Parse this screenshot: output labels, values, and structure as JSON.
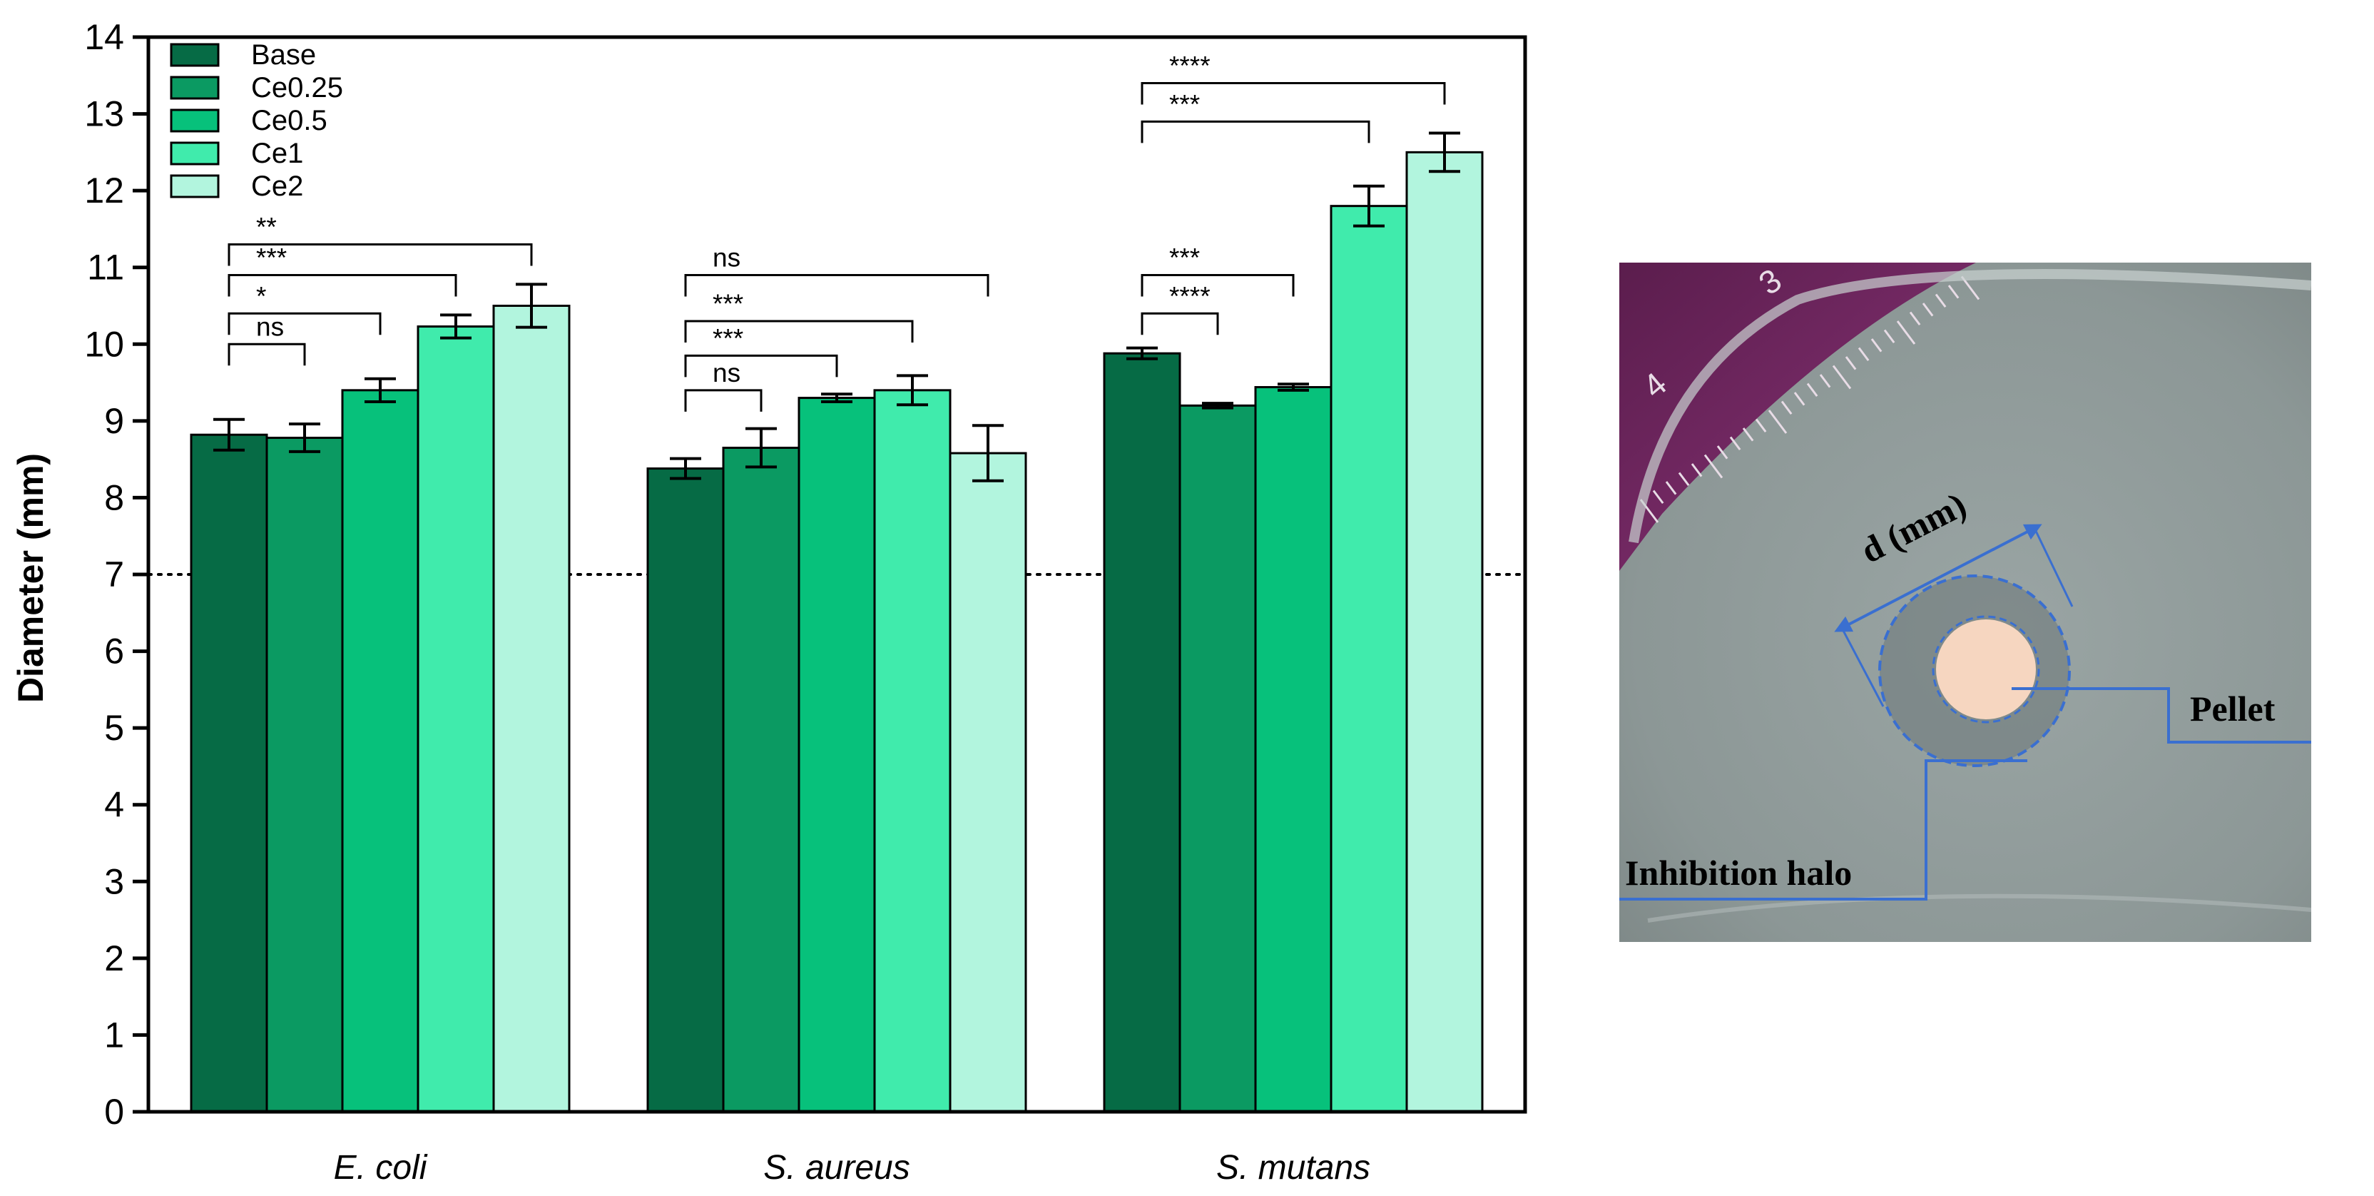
{
  "chart_data": {
    "type": "bar",
    "title": "",
    "xlabel": "",
    "ylabel": "Diameter (mm)",
    "ylim": [
      0,
      14
    ],
    "yticks": [
      0,
      1,
      2,
      3,
      4,
      5,
      6,
      7,
      8,
      9,
      10,
      11,
      12,
      13,
      14
    ],
    "reference_line": 7,
    "categories": [
      "E. coli",
      "S. aureus",
      "S. mutans"
    ],
    "legend_position": "top-left",
    "series": [
      {
        "name": "Base",
        "color": "#066b45",
        "values": [
          8.82,
          8.38,
          9.88
        ],
        "errors": [
          0.2,
          0.13,
          0.07
        ]
      },
      {
        "name": "Ce0.25",
        "color": "#0b9a62",
        "values": [
          8.78,
          8.65,
          9.2
        ],
        "errors": [
          0.18,
          0.25,
          0.03
        ]
      },
      {
        "name": "Ce0.5",
        "color": "#07c17b",
        "values": [
          9.4,
          9.3,
          9.44
        ],
        "errors": [
          0.15,
          0.05,
          0.04
        ]
      },
      {
        "name": "Ce1",
        "color": "#40ebac",
        "values": [
          10.23,
          9.4,
          11.8
        ],
        "errors": [
          0.15,
          0.19,
          0.26
        ]
      },
      {
        "name": "Ce2",
        "color": "#b2f5de",
        "values": [
          10.5,
          8.58,
          12.5
        ],
        "errors": [
          0.28,
          0.36,
          0.25
        ]
      }
    ],
    "significance": [
      {
        "category": 0,
        "from": 0,
        "to": 1,
        "label": "ns",
        "level": 10.0
      },
      {
        "category": 0,
        "from": 0,
        "to": 2,
        "label": "*",
        "level": 10.4
      },
      {
        "category": 0,
        "from": 0,
        "to": 3,
        "label": "***",
        "level": 10.9
      },
      {
        "category": 0,
        "from": 0,
        "to": 4,
        "label": "**",
        "level": 11.3
      },
      {
        "category": 1,
        "from": 0,
        "to": 1,
        "label": "ns",
        "level": 9.4
      },
      {
        "category": 1,
        "from": 0,
        "to": 2,
        "label": "***",
        "level": 9.85
      },
      {
        "category": 1,
        "from": 0,
        "to": 3,
        "label": "***",
        "level": 10.3
      },
      {
        "category": 1,
        "from": 0,
        "to": 4,
        "label": "ns",
        "level": 10.9
      },
      {
        "category": 2,
        "from": 0,
        "to": 1,
        "label": "****",
        "level": 10.4
      },
      {
        "category": 2,
        "from": 0,
        "to": 2,
        "label": "***",
        "level": 10.9
      },
      {
        "category": 2,
        "from": 0,
        "to": 3,
        "label": "***",
        "level": 12.9
      },
      {
        "category": 2,
        "from": 0,
        "to": 4,
        "label": "****",
        "level": 13.4
      }
    ]
  },
  "photo": {
    "measure_label": "d (mm)",
    "pellet_label": "Pellet",
    "halo_label": "Inhibition halo",
    "ruler_numbers": [
      "3",
      "4"
    ]
  },
  "colors": {
    "axis": "#000000",
    "annotation_blue": "#3a6fd0",
    "ruler_purple": "#7a2a66",
    "agar": "#8f9a9a",
    "pellet": "#f6d6c0"
  }
}
